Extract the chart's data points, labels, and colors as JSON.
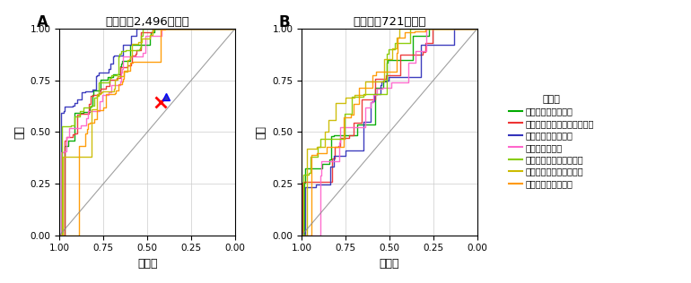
{
  "title_A": "乳がん（2,496症例）",
  "title_B": "膵がん（721症例）",
  "label_A": "A",
  "label_B": "B",
  "xlabel": "特異度",
  "ylabel": "感度",
  "legend_title": "分類器",
  "classifiers": [
    "ランダムフォレスト",
    "条件付きランダムフォレスト",
    "勾配ブースティング",
    "ナイーブベイズ",
    "ニューラルネットワーク",
    "サポートベクターマシン",
    "多重ロジスティック"
  ],
  "colors": [
    "#00aa00",
    "#ee3333",
    "#3333bb",
    "#ff66cc",
    "#88cc00",
    "#ccbb00",
    "#ff9900"
  ],
  "background_color": "#ffffff",
  "grid_color": "#cccccc"
}
